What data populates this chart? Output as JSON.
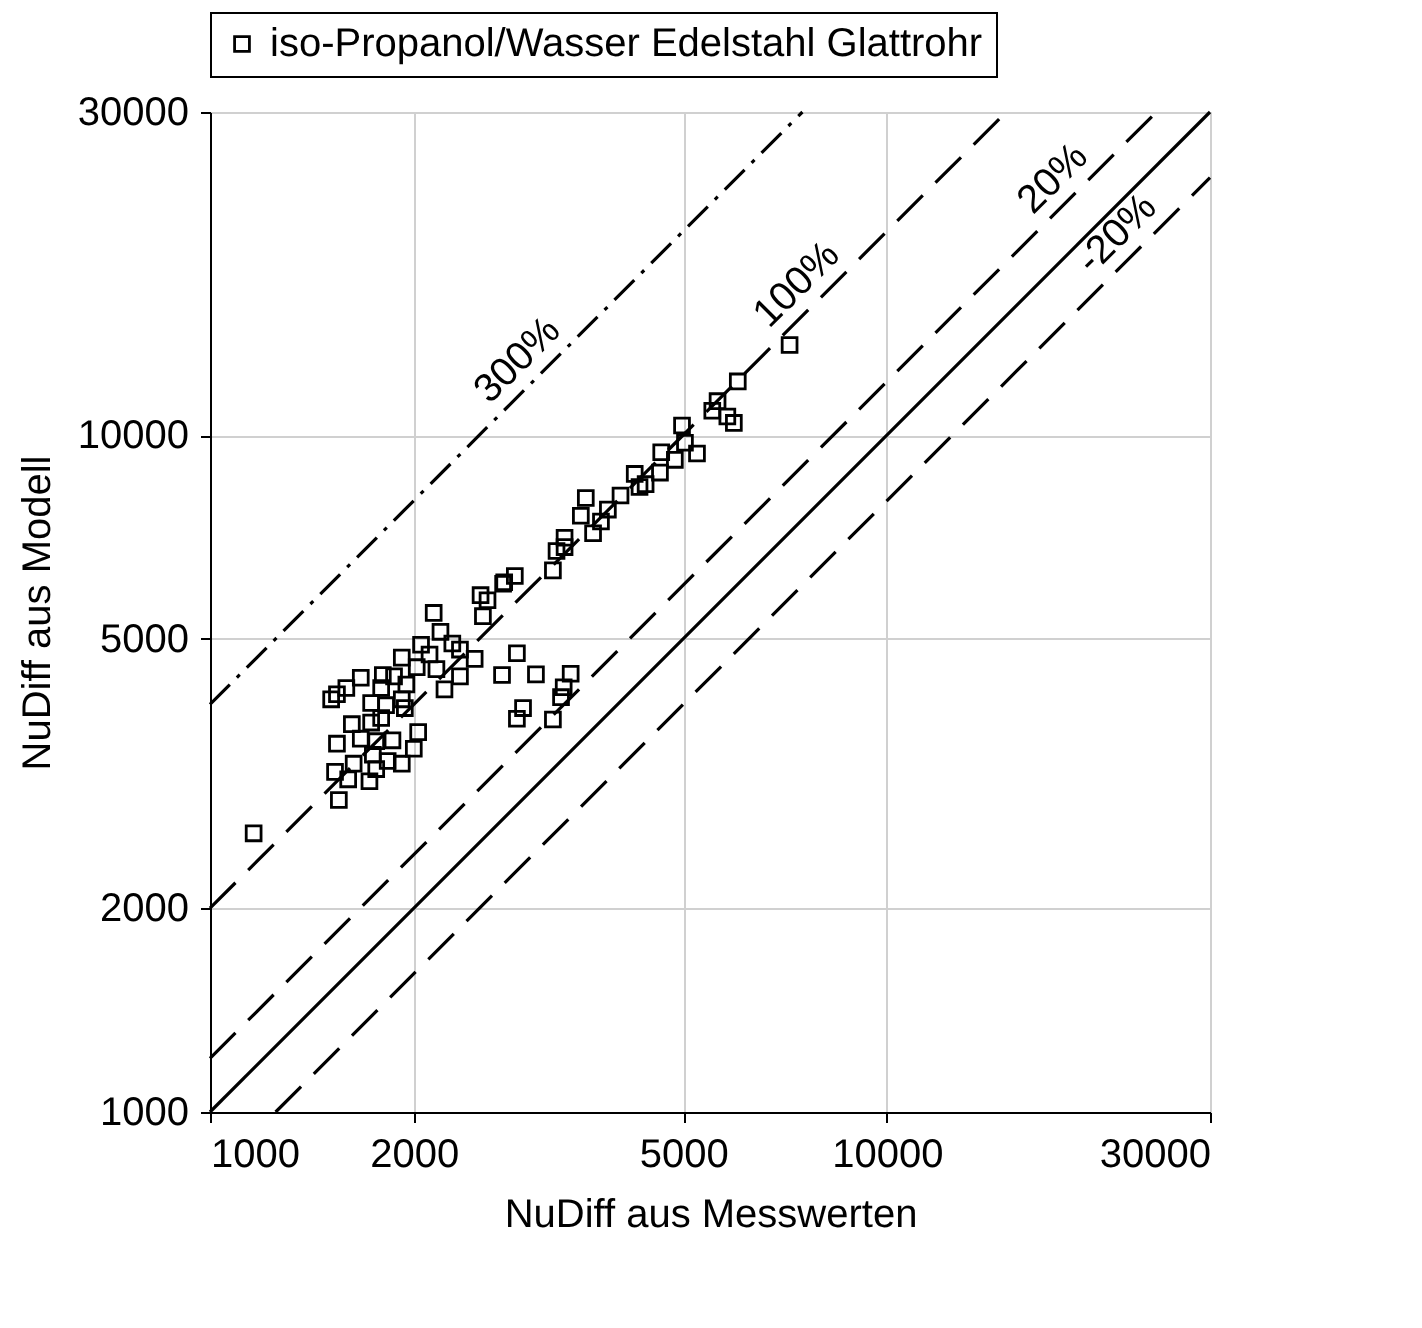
{
  "chart_data": {
    "type": "scatter",
    "xlabel": "NuDiff aus Messwerten",
    "ylabel": "NuDiff aus Modell",
    "log": "xy",
    "xlim": [
      1000,
      30000
    ],
    "ylim": [
      1000,
      30000
    ],
    "xticks": [
      1000,
      2000,
      5000,
      10000,
      30000
    ],
    "yticks": [
      1000,
      2000,
      5000,
      10000,
      30000
    ],
    "grid": true,
    "legend": "top",
    "series": [
      {
        "name": "iso-Propanol/Wasser Edelstahl Glattrohr",
        "color": "#000000",
        "marker": "square",
        "x": [
          1160,
          1550,
          1510,
          1540,
          1590,
          1670,
          1800,
          1790,
          1870,
          1920,
          1950,
          1920,
          1820,
          1730,
          1730,
          1620,
          1790,
          1940,
          1540,
          1670,
          1760,
          1860,
          2030,
          2000,
          1920,
          1830,
          1740,
          1630,
          1530,
          1600,
          1720,
          1760,
          2050,
          2140,
          2190,
          2280,
          2110,
          2020,
          2160,
          2220,
          2340,
          2460,
          2510,
          2530,
          2710,
          2700,
          2840,
          3030,
          3410,
          3330,
          3300,
          2900,
          2840,
          3210,
          2340,
          2570,
          2720,
          2820,
          3210,
          3250,
          3340,
          3340,
          3530,
          3590,
          3680,
          3780,
          3870,
          4040,
          4240,
          4310,
          4400,
          4620,
          4640,
          4860,
          4980,
          5030,
          5240,
          5520,
          5620,
          5810,
          5940,
          6020,
          7180
        ],
        "values": [
          2580,
          2890,
          4070,
          4140,
          4230,
          4380,
          4420,
          4230,
          4400,
          4690,
          4280,
          4070,
          3990,
          4020,
          3760,
          3740,
          3820,
          3950,
          3500,
          3560,
          3530,
          3540,
          3640,
          3440,
          3270,
          3300,
          3370,
          3270,
          3180,
          3100,
          3080,
          3210,
          4900,
          5460,
          5120,
          4920,
          4740,
          4540,
          4510,
          4210,
          4400,
          4670,
          5800,
          5400,
          6030,
          4420,
          4760,
          4430,
          4440,
          4240,
          4100,
          3950,
          3810,
          3800,
          4820,
          5700,
          6060,
          6190,
          6310,
          6740,
          6830,
          7050,
          7600,
          8070,
          7160,
          7450,
          7760,
          8140,
          8760,
          8380,
          8460,
          8800,
          9430,
          9190,
          10330,
          9740,
          9390,
          10860,
          11220,
          10650,
          10420,
          12000,
          13580
        ]
      },
      {
        "type": "line",
        "color": "#000000",
        "line_style": "solid",
        "x": [
          1000,
          30000
        ],
        "values": [
          1000,
          30000
        ]
      },
      {
        "name": "20%",
        "type": "line",
        "color": "#000000",
        "line_style": "dashed",
        "x": [
          1000,
          25000
        ],
        "values": [
          1200,
          30000
        ]
      },
      {
        "name": "-20%",
        "type": "line",
        "color": "#000000",
        "line_style": "dashed",
        "x": [
          1250,
          30000
        ],
        "values": [
          1000,
          24000
        ]
      },
      {
        "name": "100%",
        "type": "line",
        "color": "#000000",
        "line_style": "dashed",
        "x": [
          1000,
          15000
        ],
        "values": [
          2000,
          30000
        ]
      },
      {
        "name": "300%",
        "type": "line",
        "color": "#000000",
        "line_style": "dashdot",
        "x": [
          1000,
          7500
        ],
        "values": [
          4000,
          30000
        ]
      }
    ]
  }
}
